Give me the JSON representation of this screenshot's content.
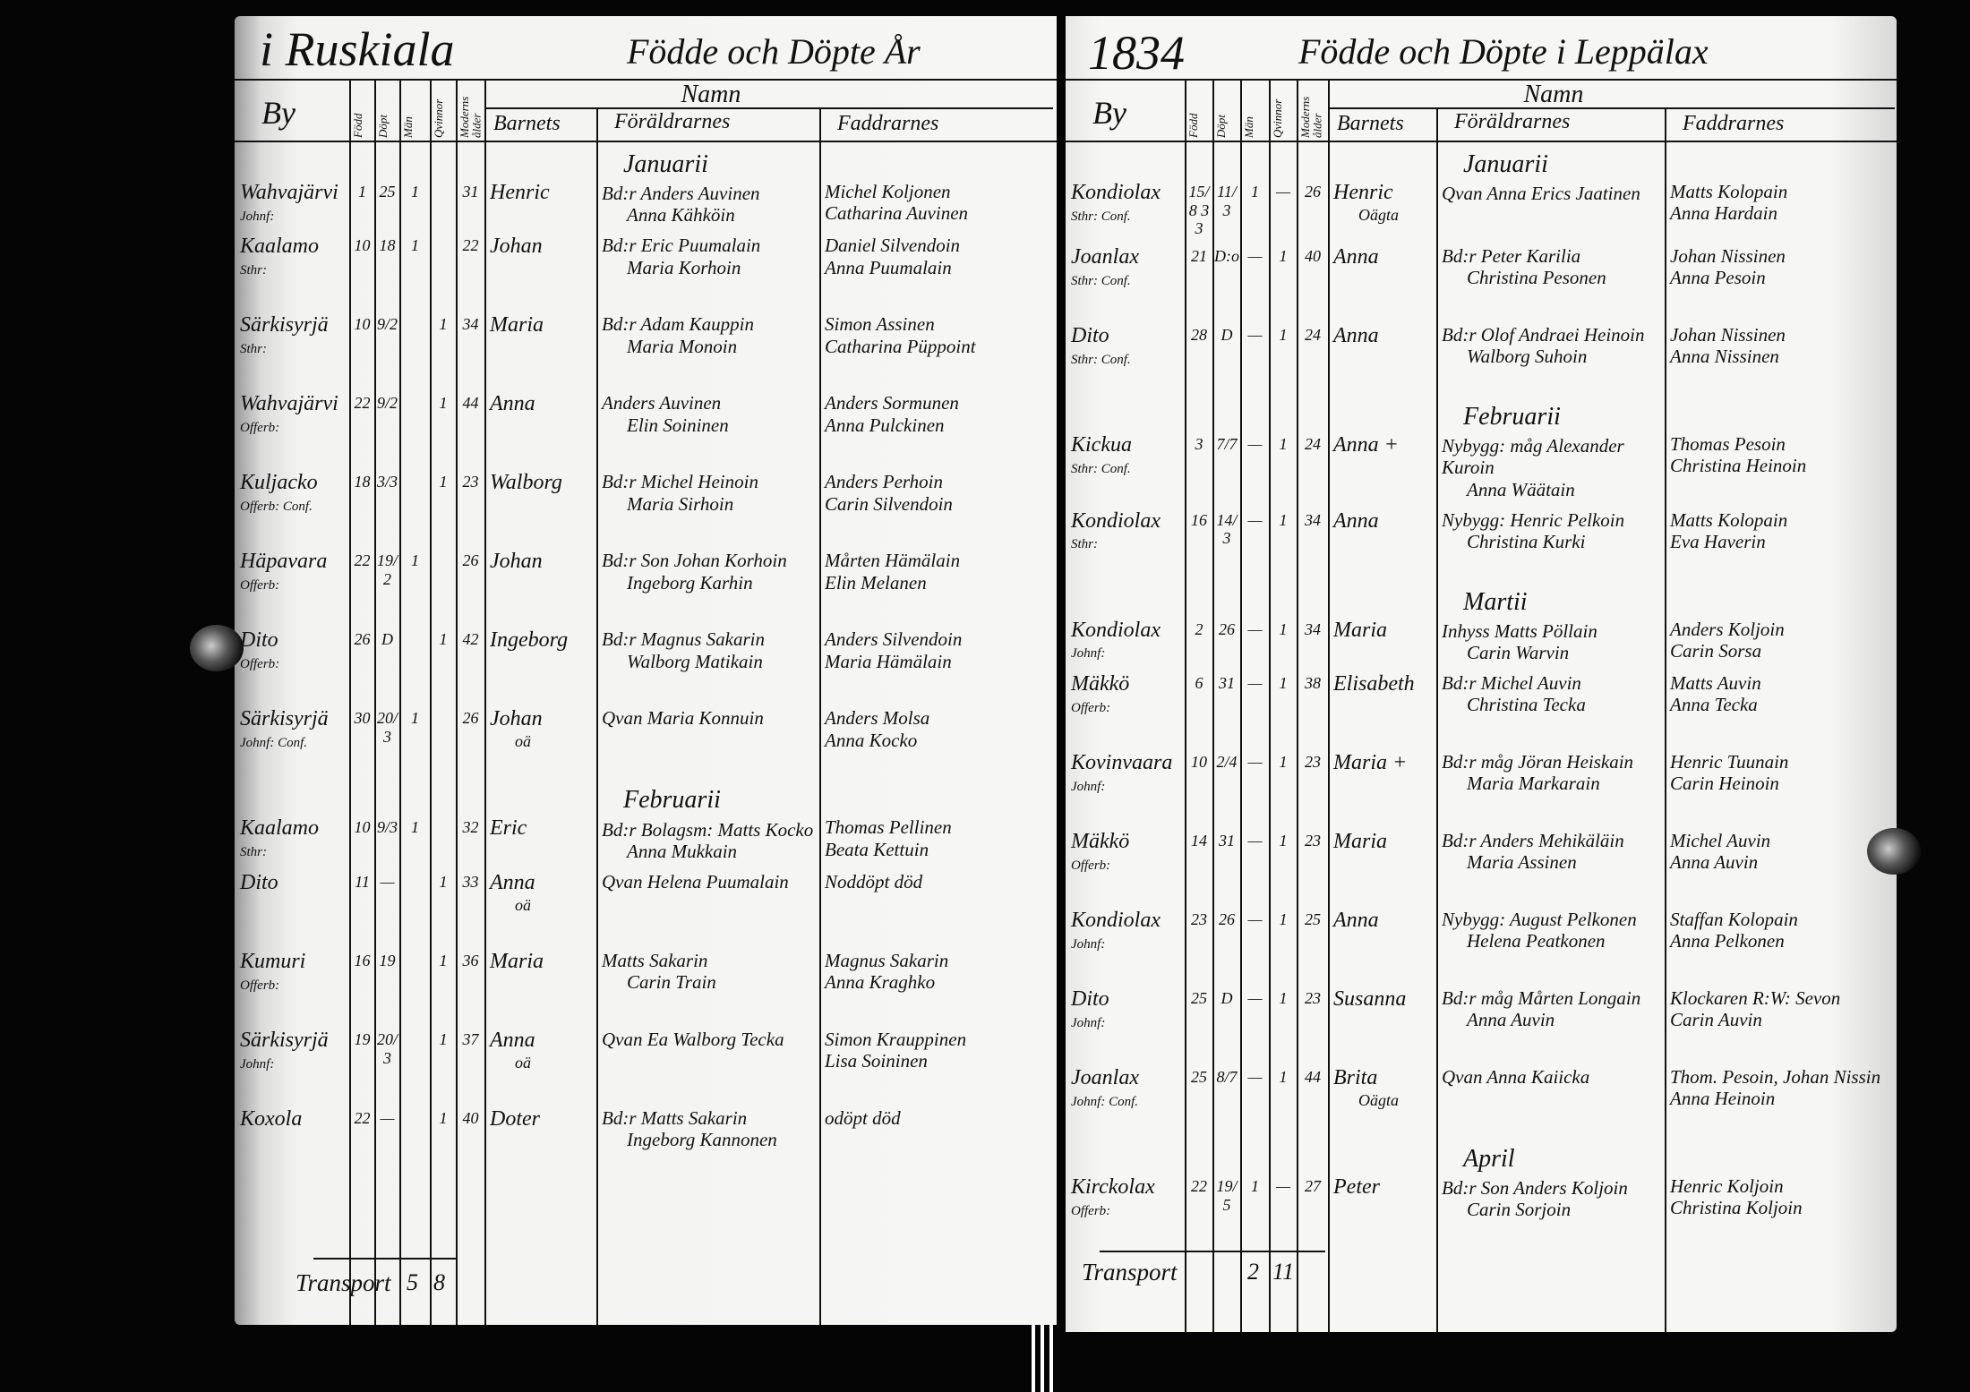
{
  "left_page": {
    "parish": "i Ruskiala",
    "heading": "Födde och Döpte År",
    "columns": {
      "by": "By",
      "fodd": "Född",
      "dopt": "Döpt",
      "man": "Män",
      "qvinnor": "Qvinnor",
      "alder": "Moderns ålder",
      "namn": "Namn",
      "barnets": "Barnets",
      "foraldrarnes": "Föräldrarnes",
      "faddrarnes": "Faddrarnes"
    },
    "entries": [
      {
        "month": "Januarii",
        "by": "Wahvajärvi",
        "by_note": "Johnf:",
        "fodd": "1",
        "dopt": "25",
        "man": "1",
        "qvinna": "",
        "alder": "31",
        "barn": "Henric",
        "barn_note": "",
        "foraldrar": [
          "Bd:r Anders Auvinen",
          "Anna Kähköin"
        ],
        "faddrar": [
          "Michel Koljonen",
          "Catharina Auvinen"
        ]
      },
      {
        "month": "",
        "by": "Kaalamo",
        "by_note": "Sthr:",
        "fodd": "10",
        "dopt": "18",
        "man": "1",
        "qvinna": "",
        "alder": "22",
        "barn": "Johan",
        "barn_note": "",
        "foraldrar": [
          "Bd:r Eric Puumalain",
          "Maria Korhoin"
        ],
        "faddrar": [
          "Daniel Silvendoin",
          "Anna Puumalain"
        ]
      },
      {
        "month": "",
        "by": "Särkisyrjä",
        "by_note": "Sthr:",
        "fodd": "10",
        "dopt": "9/2",
        "man": "",
        "qvinna": "1",
        "alder": "34",
        "barn": "Maria",
        "barn_note": "",
        "foraldrar": [
          "Bd:r Adam Kauppin",
          "Maria Monoin"
        ],
        "faddrar": [
          "Simon Assinen",
          "Catharina Püppoint"
        ]
      },
      {
        "month": "",
        "by": "Wahvajärvi",
        "by_note": "Offerb:",
        "fodd": "22",
        "dopt": "9/2",
        "man": "",
        "qvinna": "1",
        "alder": "44",
        "barn": "Anna",
        "barn_note": "",
        "foraldrar": [
          "Anders Auvinen",
          "Elin Soininen"
        ],
        "faddrar": [
          "Anders Sormunen",
          "Anna Pulckinen"
        ]
      },
      {
        "month": "",
        "by": "Kuljacko",
        "by_note": "Offerb: Conf.",
        "fodd": "18",
        "dopt": "3/3",
        "man": "",
        "qvinna": "1",
        "alder": "23",
        "barn": "Walborg",
        "barn_note": "",
        "foraldrar": [
          "Bd:r Michel Heinoin",
          "Maria Sirhoin"
        ],
        "faddrar": [
          "Anders Perhoin",
          "Carin Silvendoin"
        ]
      },
      {
        "month": "",
        "by": "Häpavara",
        "by_note": "Offerb:",
        "fodd": "22",
        "dopt": "19/2",
        "man": "1",
        "qvinna": "",
        "alder": "26",
        "barn": "Johan",
        "barn_note": "",
        "foraldrar": [
          "Bd:r Son Johan Korhoin",
          "Ingeborg Karhin"
        ],
        "faddrar": [
          "Mårten Hämälain",
          "Elin Melanen"
        ]
      },
      {
        "month": "",
        "by": "Dito",
        "by_note": "Offerb:",
        "fodd": "26",
        "dopt": "D",
        "man": "",
        "qvinna": "1",
        "alder": "42",
        "barn": "Ingeborg",
        "barn_note": "",
        "foraldrar": [
          "Bd:r Magnus Sakarin",
          "Walborg Matikain"
        ],
        "faddrar": [
          "Anders Silvendoin",
          "Maria Hämälain"
        ]
      },
      {
        "month": "",
        "by": "Särkisyrjä",
        "by_note": "Johnf: Conf.",
        "fodd": "30",
        "dopt": "20/3",
        "man": "1",
        "qvinna": "",
        "alder": "26",
        "barn": "Johan",
        "barn_note": "oä",
        "foraldrar": [
          "Qvan Maria Konnuin",
          ""
        ],
        "faddrar": [
          "Anders Molsa",
          "Anna Kocko"
        ]
      },
      {
        "month": "Februarii",
        "by": "Kaalamo",
        "by_note": "Sthr:",
        "fodd": "10",
        "dopt": "9/3",
        "man": "1",
        "qvinna": "",
        "alder": "32",
        "barn": "Eric",
        "barn_note": "",
        "foraldrar": [
          "Bd:r Bolagsm: Matts Kocko",
          "Anna Mukkain"
        ],
        "faddrar": [
          "Thomas Pellinen",
          "Beata Kettuin"
        ]
      },
      {
        "month": "",
        "by": "Dito",
        "by_note": "",
        "fodd": "11",
        "dopt": "—",
        "man": "",
        "qvinna": "1",
        "alder": "33",
        "barn": "Anna",
        "barn_note": "oä",
        "foraldrar": [
          "Qvan Helena Puumalain",
          ""
        ],
        "faddrar": [
          "Noddöpt död",
          ""
        ]
      },
      {
        "month": "",
        "by": "Kumuri",
        "by_note": "Offerb:",
        "fodd": "16",
        "dopt": "19",
        "man": "",
        "qvinna": "1",
        "alder": "36",
        "barn": "Maria",
        "barn_note": "",
        "foraldrar": [
          "Matts Sakarin",
          "Carin Train"
        ],
        "faddrar": [
          "Magnus Sakarin",
          "Anna Kraghko"
        ]
      },
      {
        "month": "",
        "by": "Särkisyrjä",
        "by_note": "Johnf:",
        "fodd": "19",
        "dopt": "20/3",
        "man": "",
        "qvinna": "1",
        "alder": "37",
        "barn": "Anna",
        "barn_note": "oä",
        "foraldrar": [
          "Qvan Ea Walborg Tecka",
          ""
        ],
        "faddrar": [
          "Simon Krauppinen",
          "Lisa Soininen"
        ]
      },
      {
        "month": "",
        "by": "Koxola",
        "by_note": "",
        "fodd": "22",
        "dopt": "—",
        "man": "",
        "qvinna": "1",
        "alder": "40",
        "barn": "Doter",
        "barn_note": "",
        "foraldrar": [
          "Bd:r Matts Sakarin",
          "Ingeborg Kannonen"
        ],
        "faddrar": [
          "odöpt död",
          ""
        ]
      }
    ],
    "transport": {
      "label": "Transport",
      "man": "5",
      "qvinnor": "8"
    }
  },
  "right_page": {
    "year": "1834",
    "heading": "Födde och Döpte i Leppälax",
    "columns": {
      "by": "By",
      "fodd": "Född",
      "dopt": "Döpt",
      "man": "Män",
      "qvinnor": "Qvinnor",
      "alder": "Moderns ålder",
      "namn": "Namn",
      "barnets": "Barnets",
      "foraldrarnes": "Föräldrarnes",
      "faddrarnes": "Faddrarnes"
    },
    "entries": [
      {
        "month": "Januarii",
        "by": "Kondiolax",
        "by_note": "Sthr: Conf.",
        "fodd": "15/8 33",
        "dopt": "11/3",
        "man": "1",
        "qvinna": "—",
        "alder": "26",
        "barn": "Henric",
        "barn_note": "Oägta",
        "foraldrar": [
          "Qvan Anna Erics Jaatinen",
          ""
        ],
        "faddrar": [
          "Matts Kolopain",
          "Anna Hardain"
        ]
      },
      {
        "month": "",
        "by": "Joanlax",
        "by_note": "Sthr: Conf.",
        "fodd": "21",
        "dopt": "D:o",
        "man": "—",
        "qvinna": "1",
        "alder": "40",
        "barn": "Anna",
        "barn_note": "",
        "foraldrar": [
          "Bd:r Peter Karilia",
          "Christina Pesonen"
        ],
        "faddrar": [
          "Johan Nissinen",
          "Anna Pesoin"
        ]
      },
      {
        "month": "",
        "by": "Dito",
        "by_note": "Sthr: Conf.",
        "fodd": "28",
        "dopt": "D",
        "man": "—",
        "qvinna": "1",
        "alder": "24",
        "barn": "Anna",
        "barn_note": "",
        "foraldrar": [
          "Bd:r Olof Andraei Heinoin",
          "Walborg Suhoin"
        ],
        "faddrar": [
          "Johan Nissinen",
          "Anna Nissinen"
        ]
      },
      {
        "month": "Februarii",
        "by": "Kickua",
        "by_note": "Sthr: Conf.",
        "fodd": "3",
        "dopt": "7/7",
        "man": "—",
        "qvinna": "1",
        "alder": "24",
        "barn": "Anna +",
        "barn_note": "",
        "foraldrar": [
          "Nybygg: måg Alexander Kuroin",
          "Anna Wäätain"
        ],
        "faddrar": [
          "Thomas Pesoin",
          "Christina Heinoin"
        ]
      },
      {
        "month": "",
        "by": "Kondiolax",
        "by_note": "Sthr:",
        "fodd": "16",
        "dopt": "14/3",
        "man": "—",
        "qvinna": "1",
        "alder": "34",
        "barn": "Anna",
        "barn_note": "",
        "foraldrar": [
          "Nybygg: Henric Pelkoin",
          "Christina Kurki"
        ],
        "faddrar": [
          "Matts Kolopain",
          "Eva Haverin"
        ]
      },
      {
        "month": "Martii",
        "by": "Kondiolax",
        "by_note": "Johnf:",
        "fodd": "2",
        "dopt": "26",
        "man": "—",
        "qvinna": "1",
        "alder": "34",
        "barn": "Maria",
        "barn_note": "",
        "foraldrar": [
          "Inhyss Matts Pöllain",
          "Carin Warvin"
        ],
        "faddrar": [
          "Anders Koljoin",
          "Carin Sorsa"
        ]
      },
      {
        "month": "",
        "by": "Mäkkö",
        "by_note": "Offerb:",
        "fodd": "6",
        "dopt": "31",
        "man": "—",
        "qvinna": "1",
        "alder": "38",
        "barn": "Elisabeth",
        "barn_note": "",
        "foraldrar": [
          "Bd:r Michel Auvin",
          "Christina Tecka"
        ],
        "faddrar": [
          "Matts Auvin",
          "Anna Tecka"
        ]
      },
      {
        "month": "",
        "by": "Kovinvaara",
        "by_note": "Johnf:",
        "fodd": "10",
        "dopt": "2/4",
        "man": "—",
        "qvinna": "1",
        "alder": "23",
        "barn": "Maria +",
        "barn_note": "",
        "foraldrar": [
          "Bd:r måg Jöran Heiskain",
          "Maria Markarain"
        ],
        "faddrar": [
          "Henric Tuunain",
          "Carin Heinoin"
        ]
      },
      {
        "month": "",
        "by": "Mäkkö",
        "by_note": "Offerb:",
        "fodd": "14",
        "dopt": "31",
        "man": "—",
        "qvinna": "1",
        "alder": "23",
        "barn": "Maria",
        "barn_note": "",
        "foraldrar": [
          "Bd:r Anders Mehikäläin",
          "Maria Assinen"
        ],
        "faddrar": [
          "Michel Auvin",
          "Anna Auvin"
        ]
      },
      {
        "month": "",
        "by": "Kondiolax",
        "by_note": "Johnf:",
        "fodd": "23",
        "dopt": "26",
        "man": "—",
        "qvinna": "1",
        "alder": "25",
        "barn": "Anna",
        "barn_note": "",
        "foraldrar": [
          "Nybygg: August Pelkonen",
          "Helena Peatkonen"
        ],
        "faddrar": [
          "Staffan Kolopain",
          "Anna Pelkonen"
        ]
      },
      {
        "month": "",
        "by": "Dito",
        "by_note": "Johnf:",
        "fodd": "25",
        "dopt": "D",
        "man": "—",
        "qvinna": "1",
        "alder": "23",
        "barn": "Susanna",
        "barn_note": "",
        "foraldrar": [
          "Bd:r måg Mårten Longain",
          "Anna Auvin"
        ],
        "faddrar": [
          "Klockaren R:W: Sevon",
          "Carin Auvin"
        ]
      },
      {
        "month": "",
        "by": "Joanlax",
        "by_note": "Johnf: Conf.",
        "fodd": "25",
        "dopt": "8/7",
        "man": "—",
        "qvinna": "1",
        "alder": "44",
        "barn": "Brita",
        "barn_note": "Oägta",
        "foraldrar": [
          "Qvan Anna Kaiicka",
          ""
        ],
        "faddrar": [
          "Thom. Pesoin, Johan Nissin",
          "Anna Heinoin"
        ]
      },
      {
        "month": "April",
        "by": "Kirckolax",
        "by_note": "Offerb:",
        "fodd": "22",
        "dopt": "19/5",
        "man": "1",
        "qvinna": "—",
        "alder": "27",
        "barn": "Peter",
        "barn_note": "",
        "foraldrar": [
          "Bd:r Son Anders Koljoin",
          "Carin Sorjoin"
        ],
        "faddrar": [
          "Henric Koljoin",
          "Christina Koljoin"
        ]
      }
    ],
    "transport": {
      "label": "Transport",
      "man": "2",
      "qvinnor": "11"
    }
  }
}
